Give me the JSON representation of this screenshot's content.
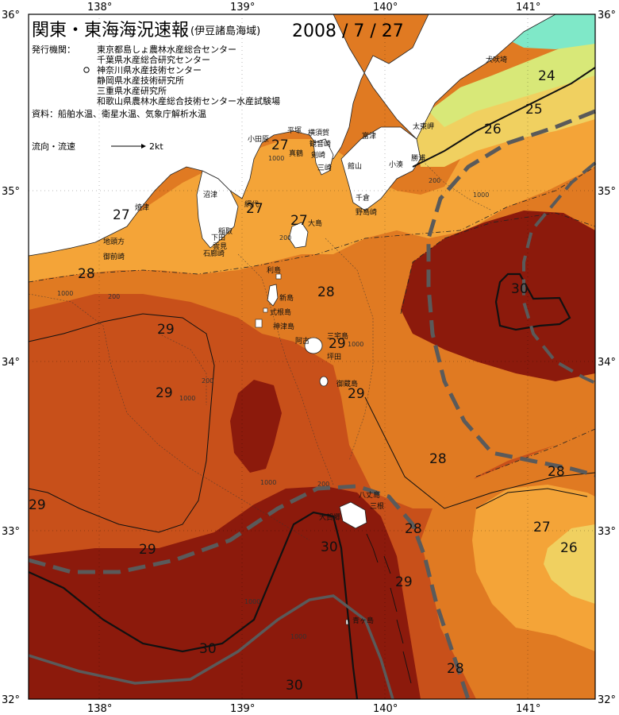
{
  "header": {
    "title": "関東・東海海況速報",
    "subtitle": "(伊豆諸島海域)",
    "date": "2008 / 7 / 27",
    "agencies_label": "発行機関：",
    "agencies": [
      "東京都島しょ農林水産総合センター",
      "千葉県水産総合研究センター",
      "神奈川県水産技術センター",
      "静岡県水産技術研究所",
      "三重県水産研究所",
      "和歌山県農林水産総合技術センター水産試験場"
    ],
    "sources": "資料：船舶水温、衛星水温、気象庁解析水温",
    "current_legend": "流向・流速",
    "current_scale": "2kt"
  },
  "axes": {
    "lon_labels": [
      "138°",
      "139°",
      "140°",
      "141°"
    ],
    "lat_labels": [
      "36°",
      "35°",
      "34°",
      "33°",
      "32°"
    ]
  },
  "colors": {
    "c24": "#7fe8c8",
    "c25": "#d8e878",
    "c26": "#f0d060",
    "c27": "#f4a438",
    "c28": "#e07a22",
    "c29": "#c8501a",
    "c30": "#8c1a0c",
    "land": "#ffffff",
    "kuroshio_axis": "#5a5a5a"
  },
  "isotherm_labels": [
    {
      "text": "24"
    },
    {
      "text": "25"
    },
    {
      "text": "26"
    },
    {
      "text": "27"
    },
    {
      "text": "27"
    },
    {
      "text": "27"
    },
    {
      "text": "27"
    },
    {
      "text": "28"
    },
    {
      "text": "28"
    },
    {
      "text": "29"
    },
    {
      "text": "29"
    },
    {
      "text": "29"
    },
    {
      "text": "29"
    },
    {
      "text": "30"
    },
    {
      "text": "28"
    },
    {
      "text": "28"
    },
    {
      "text": "29"
    },
    {
      "text": "27"
    },
    {
      "text": "26"
    },
    {
      "text": "28"
    },
    {
      "text": "29"
    },
    {
      "text": "28"
    },
    {
      "text": "30"
    },
    {
      "text": "30"
    },
    {
      "text": "30"
    },
    {
      "text": "28"
    },
    {
      "text": "29"
    }
  ],
  "place_names": [
    {
      "text": "犬吠埼"
    },
    {
      "text": "太東岬"
    },
    {
      "text": "勝浦"
    },
    {
      "text": "小湊"
    },
    {
      "text": "富津"
    },
    {
      "text": "館山"
    },
    {
      "text": "千倉"
    },
    {
      "text": "野島崎"
    },
    {
      "text": "横須賀"
    },
    {
      "text": "観音崎"
    },
    {
      "text": "剣崎"
    },
    {
      "text": "三崎"
    },
    {
      "text": "平塚"
    },
    {
      "text": "小田原"
    },
    {
      "text": "真鶴"
    },
    {
      "text": "網代"
    },
    {
      "text": "稲取"
    },
    {
      "text": "下田"
    },
    {
      "text": "石廊崎"
    },
    {
      "text": "雲見"
    },
    {
      "text": "沼津"
    },
    {
      "text": "焼津"
    },
    {
      "text": "地頭方"
    },
    {
      "text": "御前崎"
    },
    {
      "text": "大島"
    },
    {
      "text": "利島"
    },
    {
      "text": "新島"
    },
    {
      "text": "式根島"
    },
    {
      "text": "神津島"
    },
    {
      "text": "三宅島"
    },
    {
      "text": "坪田"
    },
    {
      "text": "阿古"
    },
    {
      "text": "御蔵島"
    },
    {
      "text": "八丈島"
    },
    {
      "text": "三根"
    },
    {
      "text": "大賀郷"
    },
    {
      "text": "青ヶ島"
    }
  ],
  "depth_labels": [
    {
      "text": "1000"
    },
    {
      "text": "200"
    },
    {
      "text": "1000"
    },
    {
      "text": "200"
    },
    {
      "text": "1000"
    },
    {
      "text": "200"
    },
    {
      "text": "1000"
    },
    {
      "text": "200"
    },
    {
      "text": "1000"
    },
    {
      "text": "1000"
    },
    {
      "text": "200"
    },
    {
      "text": "1000"
    },
    {
      "text": "1000"
    }
  ]
}
